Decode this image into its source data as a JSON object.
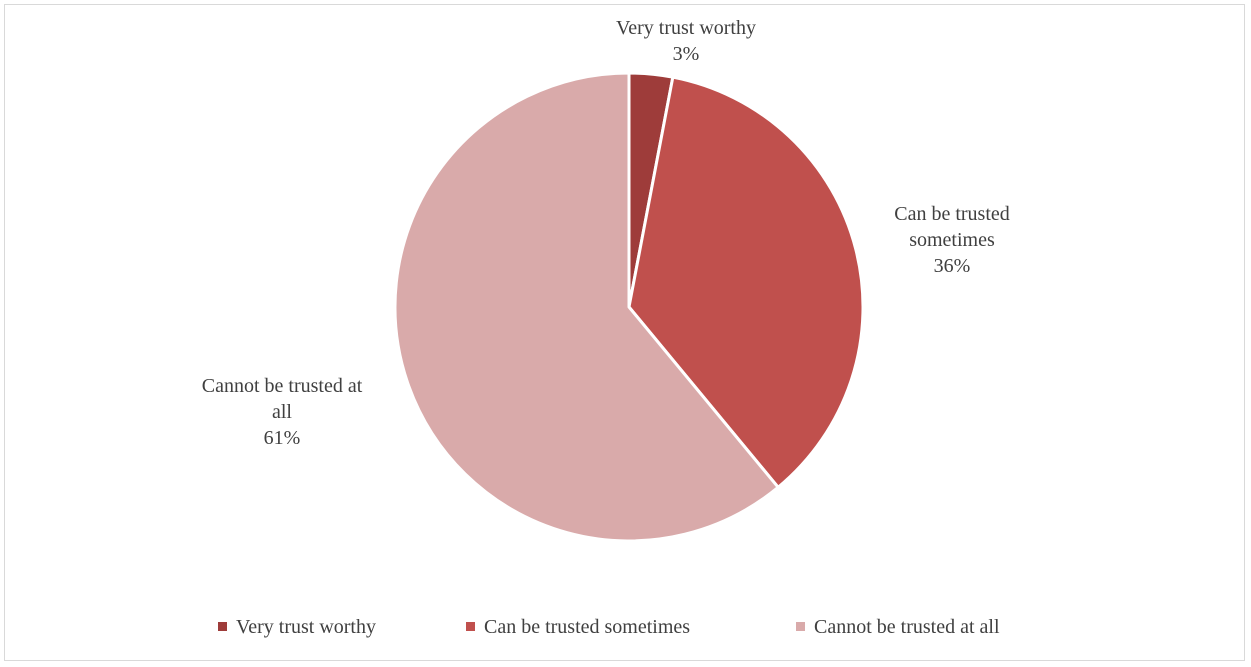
{
  "chart_data": {
    "type": "pie",
    "title": "",
    "slices": [
      {
        "label": "Very trust worthy",
        "value": 3,
        "percent_label": "3%",
        "color": "#9e3c3a",
        "label_lines": [
          "Very trust worthy"
        ]
      },
      {
        "label": "Can be trusted sometimes",
        "value": 36,
        "percent_label": "36%",
        "color": "#c0504d",
        "label_lines": [
          "Can be trusted",
          "sometimes"
        ]
      },
      {
        "label": "Cannot be trusted at all",
        "value": 61,
        "percent_label": "61%",
        "color": "#d9aaaa",
        "label_lines": [
          "Cannot be trusted at",
          "all"
        ]
      }
    ],
    "legend": {
      "position": "bottom",
      "entries": [
        "Very trust worthy",
        "Can be trusted sometimes",
        "Cannot be trusted at all"
      ]
    }
  }
}
